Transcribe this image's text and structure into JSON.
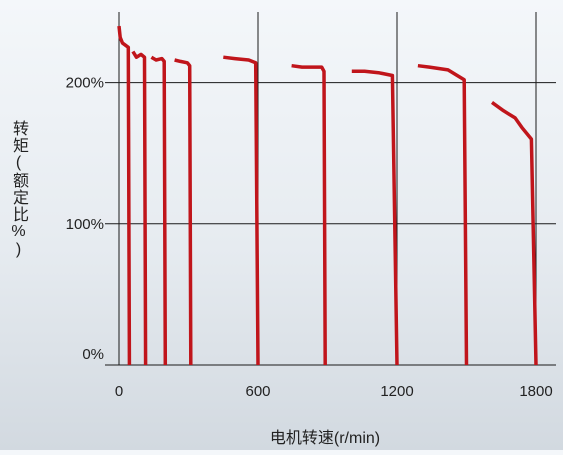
{
  "chart_data": {
    "type": "line",
    "xlabel": "电机转速(r/min)",
    "ylabel": "转矩(额定比%)",
    "x_ticks": [
      "0",
      "600",
      "1200",
      "1800"
    ],
    "y_ticks": [
      "0%",
      "100%",
      "200%"
    ],
    "xlim": [
      0,
      1800
    ],
    "ylim": [
      0,
      250
    ],
    "grid": true,
    "line_color": "#c0151b",
    "series": [
      {
        "values": [
          [
            0,
            240
          ],
          [
            5,
            232
          ],
          [
            15,
            228
          ],
          [
            40,
            225
          ],
          [
            45,
            0
          ]
        ]
      },
      {
        "values": [
          [
            60,
            222
          ],
          [
            75,
            218
          ],
          [
            95,
            220
          ],
          [
            110,
            218
          ],
          [
            115,
            0
          ]
        ]
      },
      {
        "values": [
          [
            140,
            218
          ],
          [
            160,
            216
          ],
          [
            185,
            217
          ],
          [
            195,
            215
          ],
          [
            200,
            0
          ]
        ]
      },
      {
        "values": [
          [
            240,
            216
          ],
          [
            265,
            215
          ],
          [
            295,
            214
          ],
          [
            305,
            212
          ],
          [
            310,
            0
          ]
        ]
      },
      {
        "values": [
          [
            450,
            218
          ],
          [
            500,
            217
          ],
          [
            560,
            216
          ],
          [
            590,
            214
          ],
          [
            600,
            0
          ]
        ]
      },
      {
        "values": [
          [
            745,
            212
          ],
          [
            790,
            211
          ],
          [
            840,
            211
          ],
          [
            875,
            211
          ],
          [
            885,
            208
          ],
          [
            890,
            0
          ]
        ]
      },
      {
        "values": [
          [
            1005,
            208
          ],
          [
            1060,
            208
          ],
          [
            1120,
            207
          ],
          [
            1180,
            205
          ],
          [
            1200,
            0
          ]
        ]
      },
      {
        "values": [
          [
            1290,
            212
          ],
          [
            1340,
            211
          ],
          [
            1420,
            209
          ],
          [
            1460,
            205
          ],
          [
            1490,
            202
          ],
          [
            1500,
            0
          ]
        ]
      },
      {
        "values": [
          [
            1610,
            186
          ],
          [
            1660,
            180
          ],
          [
            1710,
            175
          ],
          [
            1740,
            168
          ],
          [
            1780,
            160
          ],
          [
            1800,
            0
          ]
        ]
      }
    ]
  }
}
